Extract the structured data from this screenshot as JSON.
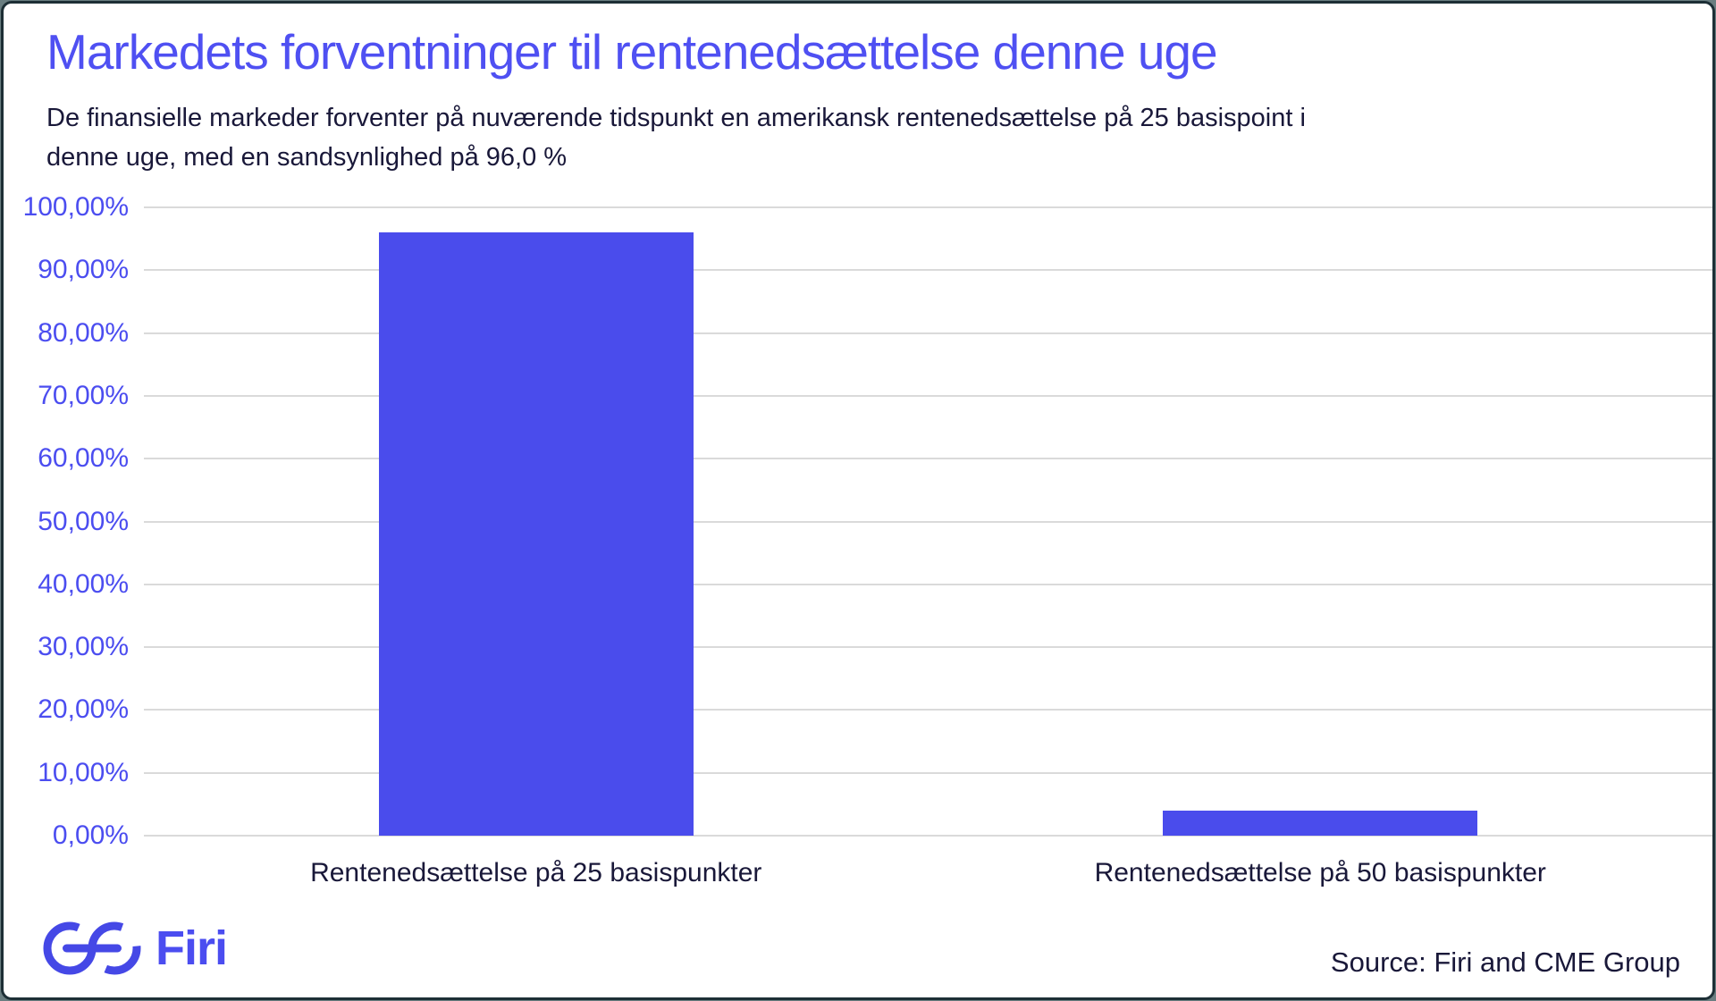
{
  "page": {
    "title": "Markedets forventninger til rentenedsættelse denne uge",
    "subtitle": "De finansielle markeder forventer på nuværende tidspunkt en amerikansk rentenedsættelse på 25 basispoint i\ndenne uge, med en sandsynlighed på 96,0 %",
    "source": "Source: Firi and CME Group",
    "logo_text": "Firi"
  },
  "colors": {
    "accent": "#4b4df0",
    "title": "#4f50f2",
    "bar": "#4a4cec",
    "text_dark": "#191839",
    "gridline": "#dadada",
    "frame_border": "#1d2f36"
  },
  "chart_data": {
    "type": "bar",
    "title": "Markedets forventninger til rentenedsættelse denne uge",
    "subtitle": "De finansielle markeder forventer på nuværende tidspunkt en amerikansk rentenedsættelse på 25 basispoint i denne uge, med en sandsynlighed på 96,0 %",
    "categories": [
      "Rentenedsættelse på 25 basispunkter",
      "Rentenedsættelse på 50 basispunkter"
    ],
    "values": [
      96.0,
      4.0
    ],
    "xlabel": "",
    "ylabel": "",
    "ylim": [
      0,
      100
    ],
    "y_ticks": [
      "100,00%",
      "90,00%",
      "80,00%",
      "70,00%",
      "60,00%",
      "50,00%",
      "40,00%",
      "30,00%",
      "20,00%",
      "10,00%",
      "0,00%"
    ],
    "grid": true,
    "legend": false,
    "bar_color": "#4a4cec",
    "source": "Source: Firi and CME Group"
  }
}
